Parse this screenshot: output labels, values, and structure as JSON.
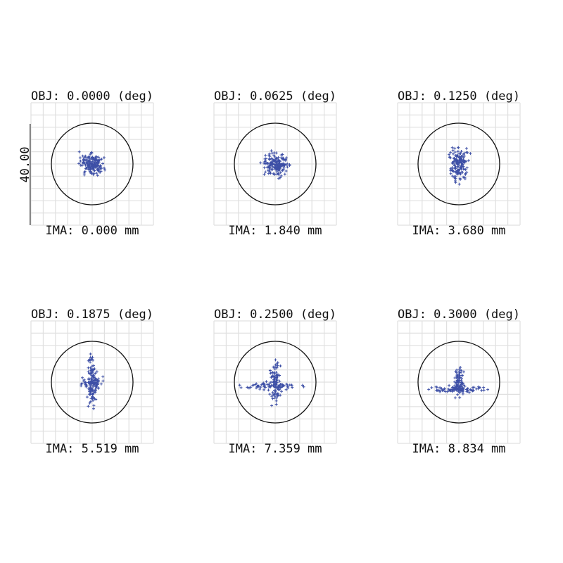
{
  "scale_label": "40.00",
  "panels": [
    {
      "object": "OBJ: 0.0000 (deg)",
      "image": "IMA: 0.000 mm"
    },
    {
      "object": "OBJ: 0.0625 (deg)",
      "image": "IMA: 1.840 mm"
    },
    {
      "object": "OBJ: 0.1250 (deg)",
      "image": "IMA: 3.680 mm"
    },
    {
      "object": "OBJ: 0.1875 (deg)",
      "image": "IMA: 5.519 mm"
    },
    {
      "object": "OBJ: 0.2500 (deg)",
      "image": "IMA: 7.359 mm"
    },
    {
      "object": "OBJ: 0.3000 (deg)",
      "image": "IMA: 8.834 mm"
    }
  ]
}
